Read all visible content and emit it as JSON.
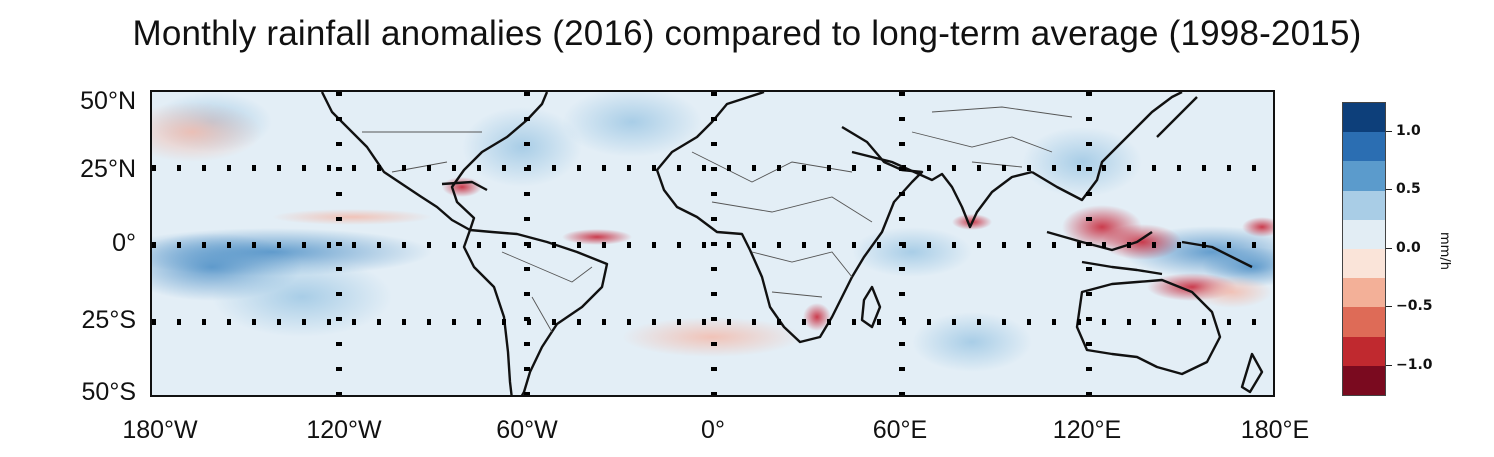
{
  "title": "Monthly rainfall anomalies (2016) compared to long-term average (1998-2015)",
  "map": {
    "projection": "equirectangular",
    "extent": {
      "lon": [
        -180,
        180
      ],
      "lat": [
        -50,
        50
      ]
    },
    "grid": {
      "lon_lines": [
        -120,
        -60,
        0,
        60,
        120
      ],
      "lat_lines": [
        -25,
        0,
        25
      ],
      "style": "dotted"
    },
    "lat_labels": [
      "50°N",
      "25°N",
      "0°",
      "25°S",
      "50°S"
    ],
    "lon_labels": [
      "180°W",
      "120°W",
      "60°W",
      "0°",
      "60°E",
      "120°E",
      "180°E"
    ],
    "background_color": "#e3eef6",
    "coastline_color": "#111111",
    "border_color": "#444444"
  },
  "colorbar": {
    "unit": "mm/h",
    "tick_labels": [
      "1.0",
      "0.5",
      "0.0",
      "−0.5",
      "−1.0"
    ],
    "colors": [
      "#0d3f7a",
      "#2b6eb2",
      "#5b9bcc",
      "#a9cde6",
      "#e2edf4",
      "#fae4d9",
      "#f3b098",
      "#de6b57",
      "#c0292f",
      "#7a0a1f"
    ]
  }
}
